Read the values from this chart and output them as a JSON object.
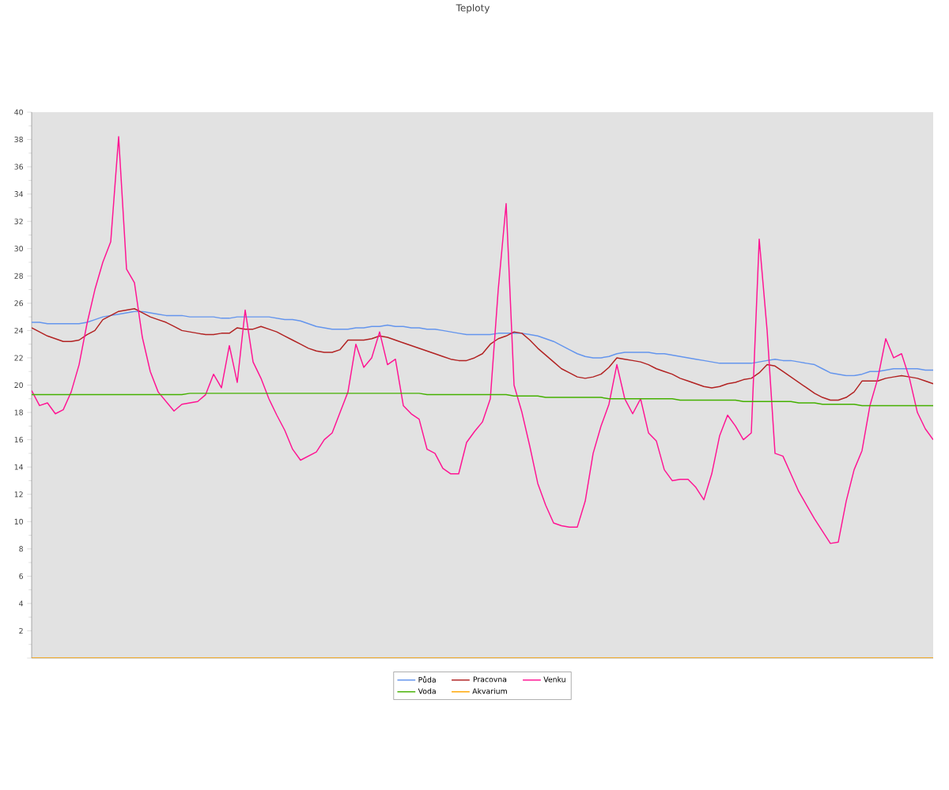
{
  "chart_data": {
    "type": "line",
    "title": "Teploty",
    "categories": [
      null,
      null,
      null,
      null,
      null,
      null,
      null,
      null,
      null,
      null,
      null,
      null,
      null,
      null,
      null,
      null,
      null,
      null,
      null,
      null,
      null,
      null,
      null,
      null,
      null,
      null,
      null,
      null,
      null,
      null,
      null,
      null,
      null,
      null,
      null,
      null,
      null,
      null,
      null,
      null,
      null,
      null,
      null,
      null,
      null,
      null,
      null,
      null,
      null,
      null,
      null,
      null,
      null,
      null,
      null,
      null,
      null,
      null,
      null,
      null,
      null,
      null,
      null,
      null,
      null,
      null,
      null,
      null,
      null,
      null,
      null,
      null,
      null,
      null,
      null,
      null,
      null,
      null,
      null,
      null,
      null,
      null,
      null,
      null,
      null,
      null,
      null,
      null,
      null,
      null,
      null,
      null,
      null,
      null,
      null,
      null,
      null,
      null,
      null,
      null,
      null,
      null,
      null,
      null,
      null,
      null,
      null,
      null,
      null,
      null,
      null,
      null,
      null,
      null,
      null
    ],
    "series": [
      {
        "name": "Půda",
        "color": "#6495ed",
        "values": [
          24.6,
          24.6,
          24.5,
          24.5,
          24.5,
          24.5,
          24.5,
          24.6,
          24.8,
          25.0,
          25.1,
          25.2,
          25.3,
          25.4,
          25.4,
          25.3,
          25.2,
          25.1,
          25.1,
          25.1,
          25.0,
          25.0,
          25.0,
          25.0,
          24.9,
          24.9,
          25.0,
          25.0,
          25.0,
          25.0,
          25.0,
          24.9,
          24.8,
          24.8,
          24.7,
          24.5,
          24.3,
          24.2,
          24.1,
          24.1,
          24.1,
          24.2,
          24.2,
          24.3,
          24.3,
          24.4,
          24.3,
          24.3,
          24.2,
          24.2,
          24.1,
          24.1,
          24.0,
          23.9,
          23.8,
          23.7,
          23.7,
          23.7,
          23.7,
          23.8,
          23.8,
          23.8,
          23.8,
          23.7,
          23.6,
          23.4,
          23.2,
          22.9,
          22.6,
          22.3,
          22.1,
          22.0,
          22.0,
          22.1,
          22.3,
          22.4,
          22.4,
          22.4,
          22.4,
          22.3,
          22.3,
          22.2,
          22.1,
          22.0,
          21.9,
          21.8,
          21.7,
          21.6,
          21.6,
          21.6,
          21.6,
          21.6,
          21.7,
          21.8,
          21.9,
          21.8,
          21.8,
          21.7,
          21.6,
          21.5,
          21.2,
          20.9,
          20.8,
          20.7,
          20.7,
          20.8,
          21.0,
          21.0,
          21.1,
          21.2,
          21.2,
          21.2,
          21.2,
          21.1,
          21.1
        ]
      },
      {
        "name": "Pracovna",
        "color": "#b22222",
        "values": [
          24.2,
          23.9,
          23.6,
          23.4,
          23.2,
          23.2,
          23.3,
          23.7,
          24.0,
          24.8,
          25.1,
          25.4,
          25.5,
          25.6,
          25.3,
          25.0,
          24.8,
          24.6,
          24.3,
          24.0,
          23.9,
          23.8,
          23.7,
          23.7,
          23.8,
          23.8,
          24.2,
          24.1,
          24.1,
          24.3,
          24.1,
          23.9,
          23.6,
          23.3,
          23.0,
          22.7,
          22.5,
          22.4,
          22.4,
          22.6,
          23.3,
          23.3,
          23.3,
          23.4,
          23.6,
          23.5,
          23.3,
          23.1,
          22.9,
          22.7,
          22.5,
          22.3,
          22.1,
          21.9,
          21.8,
          21.8,
          22.0,
          22.3,
          23.0,
          23.4,
          23.6,
          23.9,
          23.8,
          23.3,
          22.7,
          22.2,
          21.7,
          21.2,
          20.9,
          20.6,
          20.5,
          20.6,
          20.8,
          21.3,
          22.0,
          21.9,
          21.8,
          21.7,
          21.5,
          21.2,
          21.0,
          20.8,
          20.5,
          20.3,
          20.1,
          19.9,
          19.8,
          19.9,
          20.1,
          20.2,
          20.4,
          20.5,
          20.9,
          21.5,
          21.4,
          21.0,
          20.6,
          20.2,
          19.8,
          19.4,
          19.1,
          18.9,
          18.9,
          19.1,
          19.5,
          20.3,
          20.3,
          20.3,
          20.5,
          20.6,
          20.7,
          20.6,
          20.5,
          20.3,
          20.1
        ]
      },
      {
        "name": "Venku",
        "color": "#ff1493",
        "values": [
          19.6,
          18.5,
          18.7,
          17.9,
          18.2,
          19.5,
          21.5,
          24.5,
          27.0,
          29.0,
          30.5,
          38.2,
          28.5,
          27.5,
          23.5,
          21.0,
          19.5,
          18.8,
          18.1,
          18.6,
          18.7,
          18.8,
          19.3,
          20.8,
          19.8,
          22.9,
          20.2,
          25.5,
          21.7,
          20.5,
          19.0,
          17.8,
          16.7,
          15.3,
          14.5,
          14.8,
          15.1,
          16.0,
          16.5,
          18.0,
          19.5,
          23.0,
          21.3,
          22.0,
          23.9,
          21.5,
          21.9,
          18.5,
          17.9,
          17.5,
          15.3,
          15.0,
          13.9,
          13.5,
          13.5,
          15.8,
          16.6,
          17.3,
          19.0,
          27.0,
          33.3,
          20.0,
          18.0,
          15.5,
          12.8,
          11.2,
          9.9,
          9.7,
          9.6,
          9.6,
          11.5,
          15.0,
          17.0,
          18.6,
          21.5,
          19.0,
          17.9,
          19.0,
          16.5,
          15.9,
          13.8,
          13.0,
          13.1,
          13.1,
          12.5,
          11.6,
          13.5,
          16.3,
          17.8,
          17.0,
          16.0,
          16.5,
          30.7,
          24.0,
          15.0,
          14.8,
          13.5,
          12.2,
          11.2,
          10.2,
          9.3,
          8.4,
          8.5,
          11.5,
          13.8,
          15.2,
          18.5,
          20.5,
          23.4,
          22.0,
          22.3,
          20.5,
          18.0,
          16.8,
          16.0
        ]
      },
      {
        "name": "Voda",
        "color": "#44b000",
        "values": [
          19.3,
          19.3,
          19.3,
          19.3,
          19.3,
          19.3,
          19.3,
          19.3,
          19.3,
          19.3,
          19.3,
          19.3,
          19.3,
          19.3,
          19.3,
          19.3,
          19.3,
          19.3,
          19.3,
          19.3,
          19.4,
          19.4,
          19.4,
          19.4,
          19.4,
          19.4,
          19.4,
          19.4,
          19.4,
          19.4,
          19.4,
          19.4,
          19.4,
          19.4,
          19.4,
          19.4,
          19.4,
          19.4,
          19.4,
          19.4,
          19.4,
          19.4,
          19.4,
          19.4,
          19.4,
          19.4,
          19.4,
          19.4,
          19.4,
          19.4,
          19.3,
          19.3,
          19.3,
          19.3,
          19.3,
          19.3,
          19.3,
          19.3,
          19.3,
          19.3,
          19.3,
          19.2,
          19.2,
          19.2,
          19.2,
          19.1,
          19.1,
          19.1,
          19.1,
          19.1,
          19.1,
          19.1,
          19.1,
          19.0,
          19.0,
          19.0,
          19.0,
          19.0,
          19.0,
          19.0,
          19.0,
          19.0,
          18.9,
          18.9,
          18.9,
          18.9,
          18.9,
          18.9,
          18.9,
          18.9,
          18.8,
          18.8,
          18.8,
          18.8,
          18.8,
          18.8,
          18.8,
          18.7,
          18.7,
          18.7,
          18.6,
          18.6,
          18.6,
          18.6,
          18.6,
          18.5,
          18.5,
          18.5,
          18.5,
          18.5,
          18.5,
          18.5,
          18.5,
          18.5,
          18.5
        ]
      },
      {
        "name": "Akvarium",
        "color": "#ffa500",
        "values": [
          0,
          0,
          0,
          0,
          0,
          0,
          0,
          0,
          0,
          0,
          0,
          0,
          0,
          0,
          0,
          0,
          0,
          0,
          0,
          0,
          0,
          0,
          0,
          0,
          0,
          0,
          0,
          0,
          0,
          0,
          0,
          0,
          0,
          0,
          0,
          0,
          0,
          0,
          0,
          0,
          0,
          0,
          0,
          0,
          0,
          0,
          0,
          0,
          0,
          0,
          0,
          0,
          0,
          0,
          0,
          0,
          0,
          0,
          0,
          0,
          0,
          0,
          0,
          0,
          0,
          0,
          0,
          0,
          0,
          0,
          0,
          0,
          0,
          0,
          0,
          0,
          0,
          0,
          0,
          0,
          0,
          0,
          0,
          0,
          0,
          0,
          0,
          0,
          0,
          0,
          0,
          0,
          0,
          0,
          0,
          0,
          0,
          0,
          0,
          0,
          0,
          0,
          0,
          0,
          0,
          0,
          0,
          0,
          0,
          0,
          0,
          0,
          0,
          0,
          0
        ]
      }
    ],
    "ylim": [
      0,
      40
    ],
    "yticks": [
      {
        "value": 0,
        "label": null
      },
      2,
      4,
      6,
      8,
      10,
      12,
      14,
      16,
      18,
      20,
      22,
      24,
      26,
      28,
      30,
      32,
      34,
      36,
      38,
      40
    ],
    "grid": false,
    "legend": "bottom"
  }
}
